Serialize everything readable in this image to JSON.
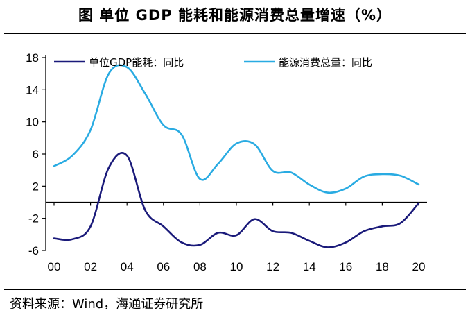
{
  "title": "图  单位 GDP 能耗和能源消费总量增速（%）",
  "source": "资料来源：Wind，海通证券研究所",
  "chart_data": {
    "type": "line",
    "xlabel": "",
    "ylabel": "",
    "x_ticks": [
      "00",
      "02",
      "04",
      "06",
      "08",
      "10",
      "12",
      "14",
      "16",
      "18",
      "20"
    ],
    "y_ticks": [
      "18",
      "14",
      "10",
      "6",
      "2",
      "-2",
      "-6"
    ],
    "ylim": [
      -6,
      18
    ],
    "xlim": [
      2000,
      2020
    ],
    "grid": false,
    "legend_position": "top",
    "series": [
      {
        "name": "单位GDP能耗：同比",
        "color": "#1a1a7a",
        "x": [
          2000,
          2001,
          2002,
          2003,
          2004,
          2005,
          2006,
          2007,
          2008,
          2009,
          2010,
          2011,
          2012,
          2013,
          2014,
          2015,
          2016,
          2017,
          2018,
          2019,
          2020
        ],
        "values": [
          -4.5,
          -4.6,
          -3.0,
          4.3,
          5.8,
          -1.0,
          -3.0,
          -5.0,
          -5.3,
          -3.8,
          -4.1,
          -2.1,
          -3.6,
          -3.8,
          -4.8,
          -5.6,
          -5.0,
          -3.6,
          -3.0,
          -2.6,
          -0.1
        ]
      },
      {
        "name": "能源消费总量：同比",
        "color": "#29abe2",
        "x": [
          2000,
          2001,
          2002,
          2003,
          2004,
          2005,
          2006,
          2007,
          2008,
          2009,
          2010,
          2011,
          2012,
          2013,
          2014,
          2015,
          2016,
          2017,
          2018,
          2019,
          2020
        ],
        "values": [
          4.5,
          5.8,
          9.0,
          16.0,
          16.8,
          13.5,
          9.6,
          8.4,
          2.9,
          4.8,
          7.3,
          7.2,
          3.9,
          3.7,
          2.2,
          1.2,
          1.7,
          3.2,
          3.5,
          3.3,
          2.2
        ]
      }
    ]
  }
}
